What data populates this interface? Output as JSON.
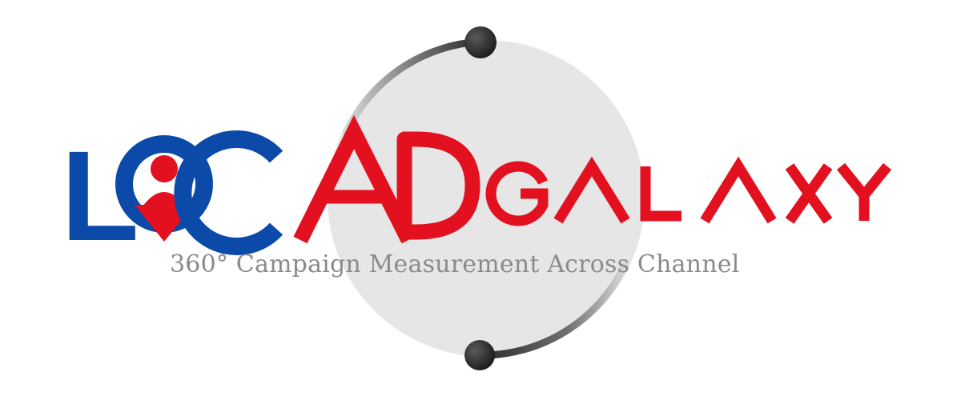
{
  "logo": {
    "word_local": "LOCAL",
    "word_ad": "AD",
    "word_galaxy": "GALAXY",
    "tagline": "360° Campaign Measurement Across Channel"
  },
  "colors": {
    "brand_blue": "#0b4aa8",
    "brand_red": "#e3101f",
    "orbit_gray": "#e6e6e6",
    "tagline_gray": "#8a8a8a",
    "dot_dark": "#2b2b2b"
  },
  "icons": {
    "orbit": "orbit-ring-icon",
    "location_pin": "location-pin-icon",
    "person": "person-icon"
  }
}
